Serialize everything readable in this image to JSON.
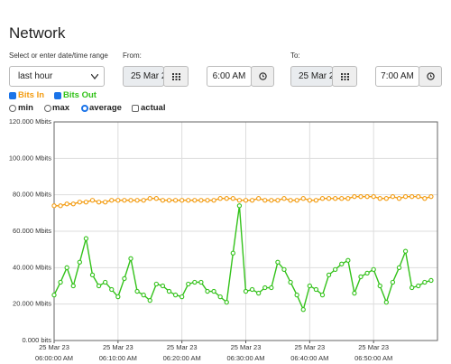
{
  "header": {
    "title": "Network"
  },
  "form": {
    "range_label": "Select or enter date/time range",
    "range_select": "last hour",
    "from_label": "From:",
    "from_date": "25 Mar 2",
    "from_time": "6:00 AM",
    "to_label": "To:",
    "to_date": "25 Mar 2",
    "to_time": "7:00 AM"
  },
  "modes": [
    {
      "label": "min",
      "checked": false
    },
    {
      "label": "max",
      "checked": false
    },
    {
      "label": "average",
      "checked": true
    }
  ],
  "actual": {
    "label": "actual",
    "checked": false
  },
  "chart_data": {
    "type": "line",
    "x": [
      "06:00:00",
      "06:01:00",
      "06:02:00",
      "06:03:00",
      "06:04:00",
      "06:05:00",
      "06:06:00",
      "06:07:00",
      "06:08:00",
      "06:09:00",
      "06:10:00",
      "06:11:00",
      "06:12:00",
      "06:13:00",
      "06:14:00",
      "06:15:00",
      "06:16:00",
      "06:17:00",
      "06:18:00",
      "06:19:00",
      "06:20:00",
      "06:21:00",
      "06:22:00",
      "06:23:00",
      "06:24:00",
      "06:25:00",
      "06:26:00",
      "06:27:00",
      "06:28:00",
      "06:29:00",
      "06:30:00",
      "06:31:00",
      "06:32:00",
      "06:33:00",
      "06:34:00",
      "06:35:00",
      "06:36:00",
      "06:37:00",
      "06:38:00",
      "06:39:00",
      "06:40:00",
      "06:41:00",
      "06:42:00",
      "06:43:00",
      "06:44:00",
      "06:45:00",
      "06:46:00",
      "06:47:00",
      "06:48:00",
      "06:49:00",
      "06:50:00",
      "06:51:00",
      "06:52:00",
      "06:53:00",
      "06:54:00",
      "06:55:00",
      "06:56:00",
      "06:57:00",
      "06:58:00",
      "06:59:00"
    ],
    "series": [
      {
        "name": "Bits In",
        "color": "#f39c12",
        "checked": true,
        "values": [
          74,
          74,
          75,
          75,
          76,
          76,
          77,
          76,
          76,
          77,
          77,
          77,
          77,
          77,
          77,
          78,
          78,
          77,
          77,
          77,
          77,
          77,
          77,
          77,
          77,
          77,
          78,
          78,
          78,
          77,
          77,
          77,
          78,
          77,
          77,
          77,
          78,
          77,
          77,
          78,
          77,
          77,
          78,
          78,
          78,
          78,
          78,
          79,
          79,
          79,
          79,
          78,
          78,
          79,
          78,
          79,
          79,
          79,
          78,
          79
        ]
      },
      {
        "name": "Bits Out",
        "color": "#33c21a",
        "checked": true,
        "values": [
          25,
          32,
          40,
          30,
          43,
          56,
          36,
          30,
          32,
          28,
          24,
          34,
          45,
          27,
          25,
          22,
          31,
          30,
          27,
          25,
          24,
          31,
          32,
          32,
          27,
          27,
          24,
          21,
          48,
          74,
          27,
          28,
          26,
          29,
          29,
          43,
          39,
          32,
          25,
          17,
          30,
          28,
          25,
          36,
          39,
          42,
          44,
          26,
          35,
          37,
          39,
          30,
          21,
          32,
          40,
          49,
          29,
          30,
          32,
          33
        ]
      }
    ],
    "xlim": [
      "06:00:00",
      "07:00:00"
    ],
    "xticks": [
      {
        "value": "06:00:00",
        "label": [
          "25 Mar 23",
          "06:00:00 AM"
        ]
      },
      {
        "value": "06:10:00",
        "label": [
          "25 Mar 23",
          "06:10:00 AM"
        ]
      },
      {
        "value": "06:20:00",
        "label": [
          "25 Mar 23",
          "06:20:00 AM"
        ]
      },
      {
        "value": "06:30:00",
        "label": [
          "25 Mar 23",
          "06:30:00 AM"
        ]
      },
      {
        "value": "06:40:00",
        "label": [
          "25 Mar 23",
          "06:40:00 AM"
        ]
      },
      {
        "value": "06:50:00",
        "label": [
          "25 Mar 23",
          "06:50:00 AM"
        ]
      }
    ],
    "ylim": [
      0,
      120
    ],
    "yticks": [
      {
        "value": 0,
        "label": "0.000 bits"
      },
      {
        "value": 20,
        "label": "20.000 Mbits"
      },
      {
        "value": 40,
        "label": "40.000 Mbits"
      },
      {
        "value": 60,
        "label": "60.000 Mbits"
      },
      {
        "value": 80,
        "label": "80.000 Mbits"
      },
      {
        "value": 100,
        "label": "100.000 Mbits"
      },
      {
        "value": 120,
        "label": "120.000 Mbits"
      }
    ],
    "grid": true
  }
}
